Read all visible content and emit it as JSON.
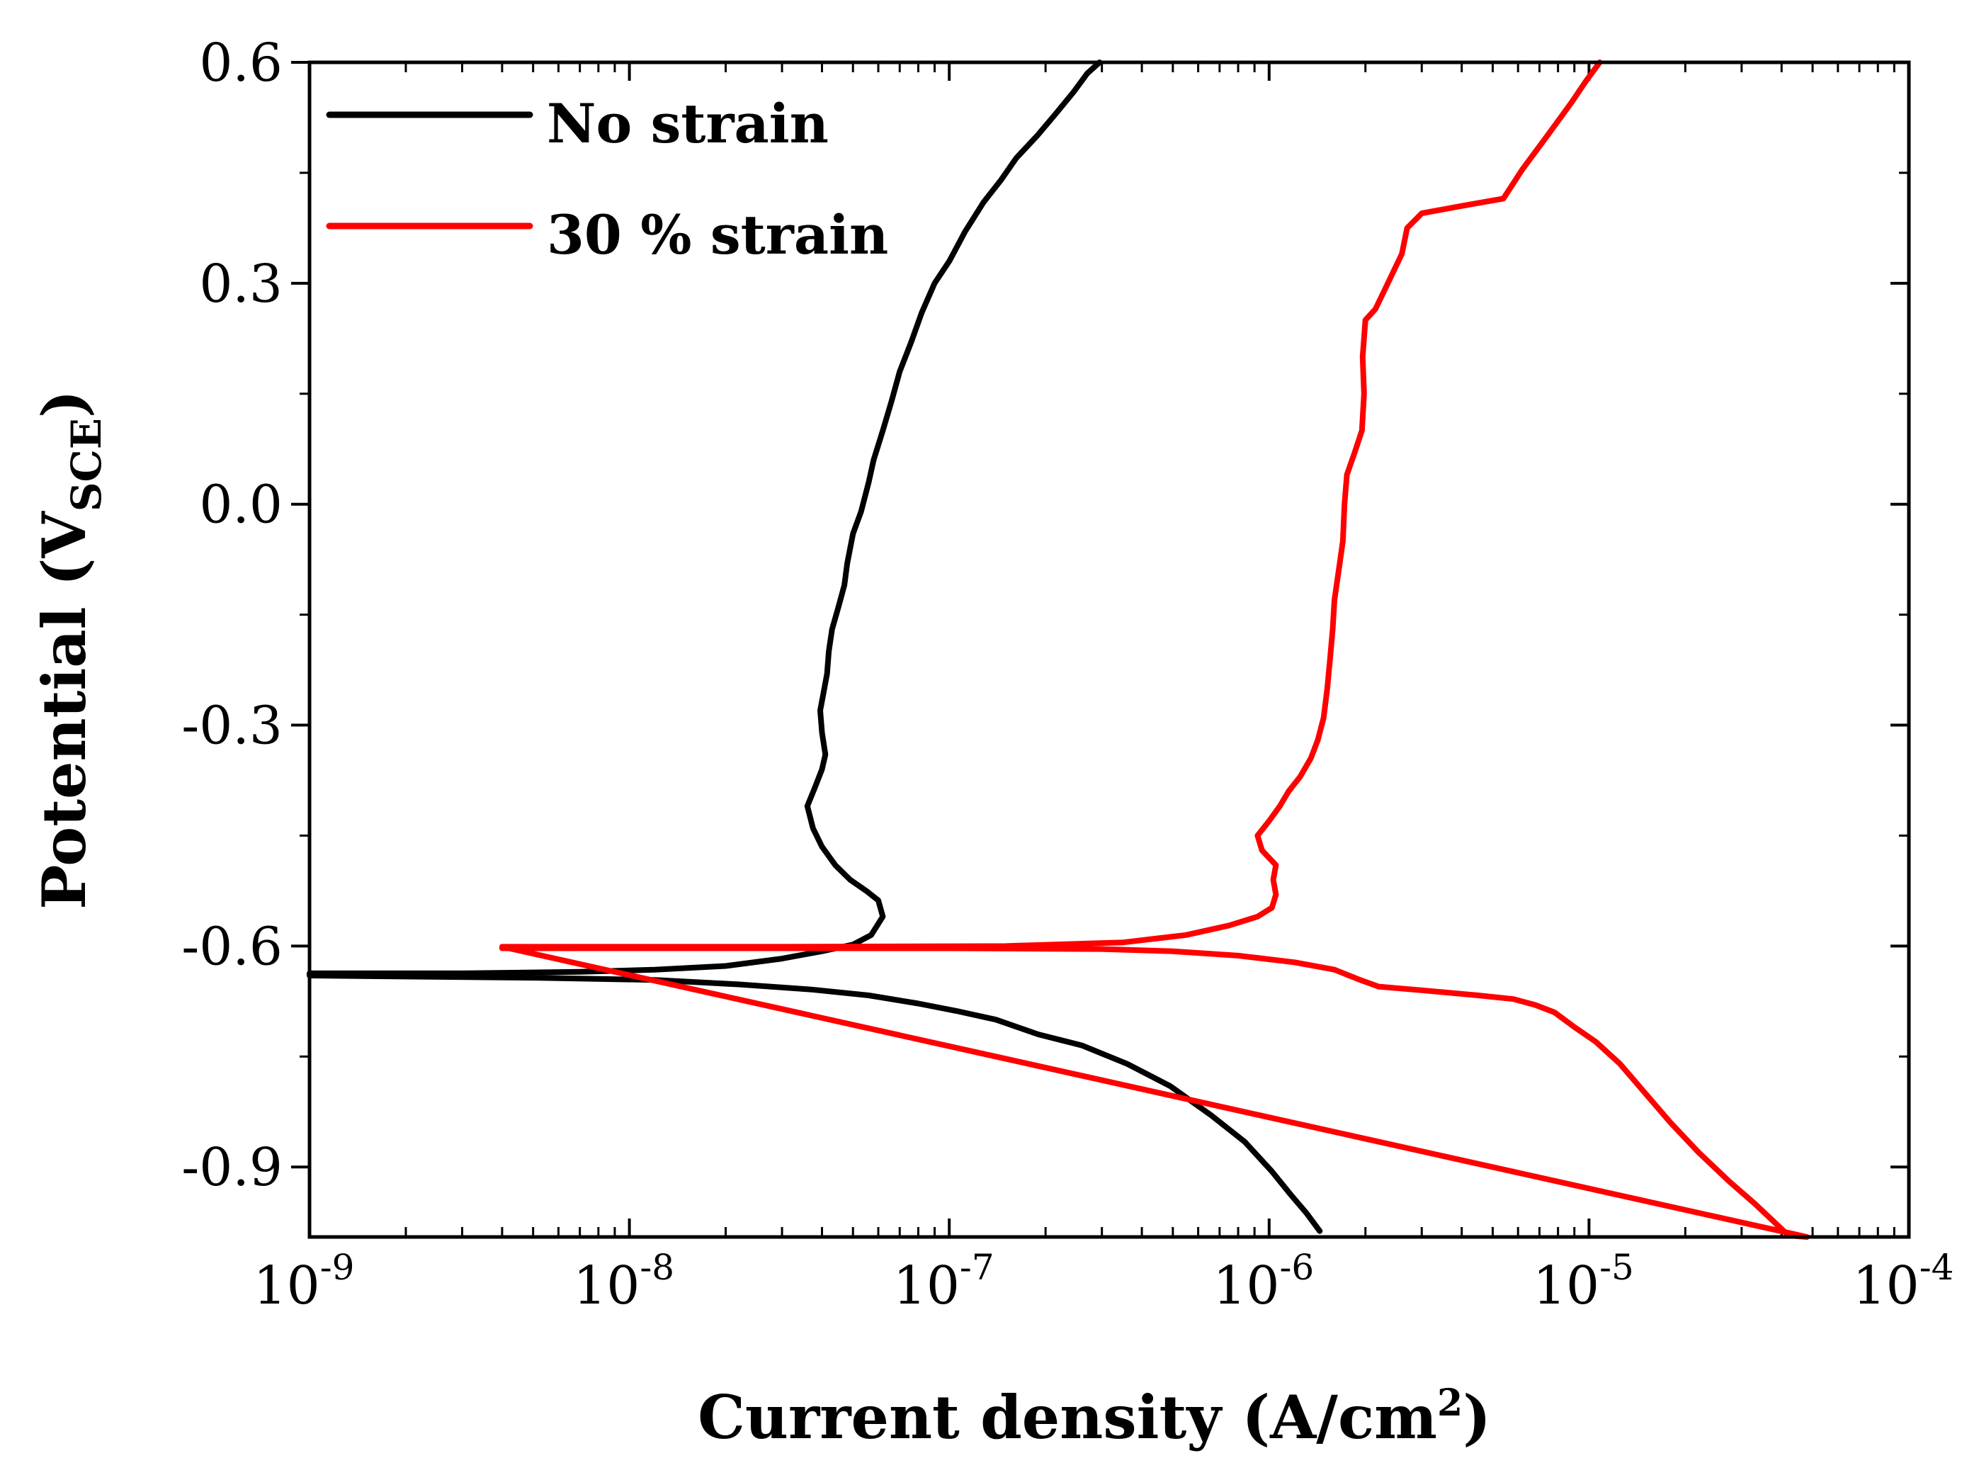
{
  "chart_data": {
    "type": "line",
    "title": "",
    "xlabel": "Current density (A/cm",
    "xlabel_sup": "2",
    "xlabel_end": ")",
    "ylabel": "Potential (V",
    "ylabel_sub": "SCE",
    "ylabel_end": ")",
    "x_scale": "log",
    "xlim": [
      1e-09,
      0.0001
    ],
    "ylim": [
      -0.995,
      0.6
    ],
    "x_ticks": [
      {
        "value": 1e-09,
        "base": "10",
        "exp": "-9"
      },
      {
        "value": 1e-08,
        "base": "10",
        "exp": "-8"
      },
      {
        "value": 1e-07,
        "base": "10",
        "exp": "-7"
      },
      {
        "value": 1e-06,
        "base": "10",
        "exp": "-6"
      },
      {
        "value": 1e-05,
        "base": "10",
        "exp": "-5"
      },
      {
        "value": 0.0001,
        "base": "10",
        "exp": "-4"
      }
    ],
    "y_ticks": [
      {
        "value": 0.6,
        "label": "0.6"
      },
      {
        "value": 0.3,
        "label": "0.3"
      },
      {
        "value": 0.0,
        "label": "0.0"
      },
      {
        "value": -0.3,
        "label": "-0.3"
      },
      {
        "value": -0.6,
        "label": "-0.6"
      },
      {
        "value": -0.9,
        "label": "-0.9"
      }
    ],
    "legend_position": "top-left",
    "series": [
      {
        "name": "No strain",
        "color": "#000000",
        "points": [
          [
            1.44e-06,
            -0.987
          ],
          [
            1.31e-06,
            -0.963
          ],
          [
            1.17e-06,
            -0.938
          ],
          [
            1.02e-06,
            -0.906
          ],
          [
            8.4e-07,
            -0.866
          ],
          [
            6.6e-07,
            -0.83
          ],
          [
            4.9e-07,
            -0.79
          ],
          [
            3.6e-07,
            -0.76
          ],
          [
            2.6e-07,
            -0.735
          ],
          [
            1.9e-07,
            -0.72
          ],
          [
            1.4e-07,
            -0.7
          ],
          [
            1.05e-07,
            -0.688
          ],
          [
            8e-08,
            -0.678
          ],
          [
            5.6e-08,
            -0.667
          ],
          [
            3.7e-08,
            -0.659
          ],
          [
            2.2e-08,
            -0.652
          ],
          [
            1.2e-08,
            -0.646
          ],
          [
            5e-09,
            -0.643
          ],
          [
            1e-09,
            -0.64
          ],
          [
            1e-09,
            -0.637
          ],
          [
            3e-09,
            -0.637
          ],
          [
            7e-09,
            -0.635
          ],
          [
            1.2e-08,
            -0.632
          ],
          [
            2e-08,
            -0.627
          ],
          [
            3e-08,
            -0.617
          ],
          [
            4e-08,
            -0.607
          ],
          [
            5e-08,
            -0.598
          ],
          [
            5.7e-08,
            -0.585
          ],
          [
            6.2e-08,
            -0.56
          ],
          [
            6e-08,
            -0.538
          ],
          [
            5.5e-08,
            -0.525
          ],
          [
            4.9e-08,
            -0.51
          ],
          [
            4.4e-08,
            -0.49
          ],
          [
            4e-08,
            -0.465
          ],
          [
            3.75e-08,
            -0.44
          ],
          [
            3.6e-08,
            -0.41
          ],
          [
            3.8e-08,
            -0.385
          ],
          [
            4e-08,
            -0.36
          ],
          [
            4.1e-08,
            -0.34
          ],
          [
            4e-08,
            -0.31
          ],
          [
            3.95e-08,
            -0.28
          ],
          [
            4.05e-08,
            -0.255
          ],
          [
            4.15e-08,
            -0.23
          ],
          [
            4.2e-08,
            -0.2
          ],
          [
            4.3e-08,
            -0.17
          ],
          [
            4.5e-08,
            -0.14
          ],
          [
            4.7e-08,
            -0.11
          ],
          [
            4.8e-08,
            -0.08
          ],
          [
            5e-08,
            -0.04
          ],
          [
            5.3e-08,
            -0.01
          ],
          [
            5.6e-08,
            0.03
          ],
          [
            5.8e-08,
            0.06
          ],
          [
            6.2e-08,
            0.1
          ],
          [
            6.6e-08,
            0.14
          ],
          [
            7e-08,
            0.18
          ],
          [
            7.6e-08,
            0.22
          ],
          [
            8.2e-08,
            0.26
          ],
          [
            9e-08,
            0.3
          ],
          [
            1e-07,
            0.33
          ],
          [
            1.12e-07,
            0.37
          ],
          [
            1.28e-07,
            0.41
          ],
          [
            1.45e-07,
            0.44
          ],
          [
            1.62e-07,
            0.47
          ],
          [
            1.88e-07,
            0.5
          ],
          [
            2.15e-07,
            0.53
          ],
          [
            2.45e-07,
            0.56
          ],
          [
            2.7e-07,
            0.585
          ],
          [
            2.95e-07,
            0.6
          ]
        ]
      },
      {
        "name": "30 % strain",
        "color": "#ff0000",
        "points": [
          [
            4e-09,
            -0.603
          ],
          [
            2e-08,
            -0.603
          ],
          [
            1e-07,
            -0.603
          ],
          [
            3e-07,
            -0.604
          ],
          [
            5e-07,
            -0.607
          ],
          [
            8e-07,
            -0.613
          ],
          [
            1.2e-06,
            -0.622
          ],
          [
            1.6e-06,
            -0.632
          ],
          [
            1.9e-06,
            -0.645
          ],
          [
            2.2e-06,
            -0.655
          ],
          [
            3e-06,
            -0.66
          ],
          [
            4.5e-06,
            -0.667
          ],
          [
            5.8e-06,
            -0.672
          ],
          [
            6.8e-06,
            -0.68
          ],
          [
            7.8e-06,
            -0.69
          ],
          [
            9e-06,
            -0.71
          ],
          [
            1.05e-05,
            -0.73
          ],
          [
            1.25e-05,
            -0.76
          ],
          [
            1.5e-05,
            -0.8
          ],
          [
            1.8e-05,
            -0.84
          ],
          [
            2.2e-05,
            -0.88
          ],
          [
            2.75e-05,
            -0.92
          ],
          [
            3.3e-05,
            -0.95
          ],
          [
            3.8e-05,
            -0.975
          ],
          [
            4.2e-05,
            -0.993
          ],
          [
            4.8e-05,
            -0.995
          ],
          [
            4e-09,
            -0.601
          ],
          [
            3e-08,
            -0.601
          ],
          [
            1.5e-07,
            -0.6
          ],
          [
            3.5e-07,
            -0.595
          ],
          [
            5.5e-07,
            -0.585
          ],
          [
            7.5e-07,
            -0.572
          ],
          [
            9.2e-07,
            -0.56
          ],
          [
            1.02e-06,
            -0.548
          ],
          [
            1.05e-06,
            -0.53
          ],
          [
            1.03e-06,
            -0.51
          ],
          [
            1.05e-06,
            -0.49
          ],
          [
            9.5e-07,
            -0.47
          ],
          [
            9.2e-07,
            -0.45
          ],
          [
            1e-06,
            -0.43
          ],
          [
            1.08e-06,
            -0.41
          ],
          [
            1.15e-06,
            -0.39
          ],
          [
            1.25e-06,
            -0.37
          ],
          [
            1.35e-06,
            -0.345
          ],
          [
            1.42e-06,
            -0.32
          ],
          [
            1.48e-06,
            -0.29
          ],
          [
            1.52e-06,
            -0.25
          ],
          [
            1.55e-06,
            -0.21
          ],
          [
            1.58e-06,
            -0.17
          ],
          [
            1.6e-06,
            -0.13
          ],
          [
            1.65e-06,
            -0.09
          ],
          [
            1.7e-06,
            -0.05
          ],
          [
            1.72e-06,
            0.0
          ],
          [
            1.75e-06,
            0.04
          ],
          [
            1.85e-06,
            0.07
          ],
          [
            1.95e-06,
            0.1
          ],
          [
            1.98e-06,
            0.15
          ],
          [
            1.96e-06,
            0.2
          ],
          [
            2e-06,
            0.25
          ],
          [
            2.15e-06,
            0.265
          ],
          [
            2.35e-06,
            0.3
          ],
          [
            2.6e-06,
            0.34
          ],
          [
            2.7e-06,
            0.375
          ],
          [
            3e-06,
            0.395
          ],
          [
            4e-06,
            0.405
          ],
          [
            5.4e-06,
            0.415
          ],
          [
            6.2e-06,
            0.455
          ],
          [
            7.4e-06,
            0.5
          ],
          [
            8.8e-06,
            0.545
          ],
          [
            9.8e-06,
            0.575
          ],
          [
            1.08e-05,
            0.6
          ]
        ]
      }
    ]
  }
}
